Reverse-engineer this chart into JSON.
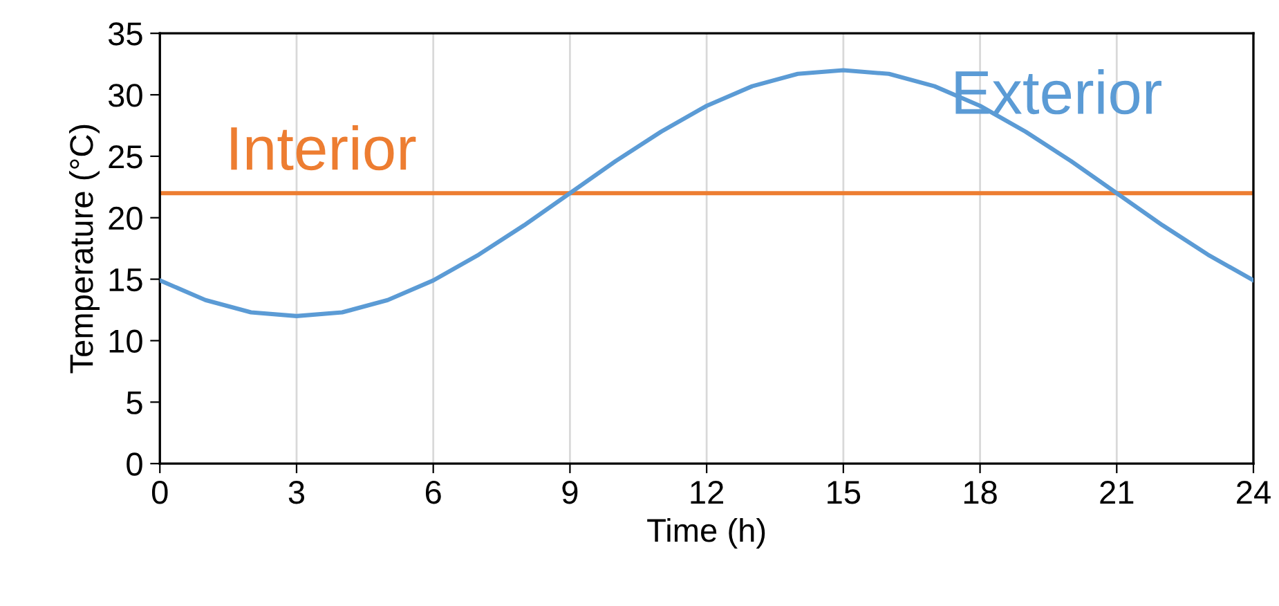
{
  "chart_data": {
    "type": "line",
    "xlabel": "Time (h)",
    "ylabel": "Temperature (°C)",
    "x": [
      0,
      1,
      2,
      3,
      4,
      5,
      6,
      7,
      8,
      9,
      10,
      11,
      12,
      13,
      14,
      15,
      16,
      17,
      18,
      19,
      20,
      21,
      22,
      23,
      24
    ],
    "series": [
      {
        "name": "Exterior",
        "color": "#5b9bd5",
        "values": [
          14.9,
          13.3,
          12.3,
          12,
          12.3,
          13.3,
          14.9,
          17,
          19.4,
          22,
          24.6,
          27,
          29.1,
          30.7,
          31.7,
          32,
          31.7,
          30.7,
          29.1,
          27,
          24.6,
          22,
          19.4,
          17,
          14.9
        ]
      },
      {
        "name": "Interior",
        "color": "#ed7d31",
        "values": [
          22,
          22,
          22,
          22,
          22,
          22,
          22,
          22,
          22,
          22,
          22,
          22,
          22,
          22,
          22,
          22,
          22,
          22,
          22,
          22,
          22,
          22,
          22,
          22,
          22
        ]
      }
    ],
    "xlim": [
      0,
      24
    ],
    "xticks": [
      0,
      3,
      6,
      9,
      12,
      15,
      18,
      21,
      24
    ],
    "ylim": [
      0,
      35
    ],
    "yticks": [
      0,
      5,
      10,
      15,
      20,
      25,
      30,
      35
    ],
    "grid": "x",
    "legend": false,
    "marker": "none",
    "line_style": "solid"
  }
}
